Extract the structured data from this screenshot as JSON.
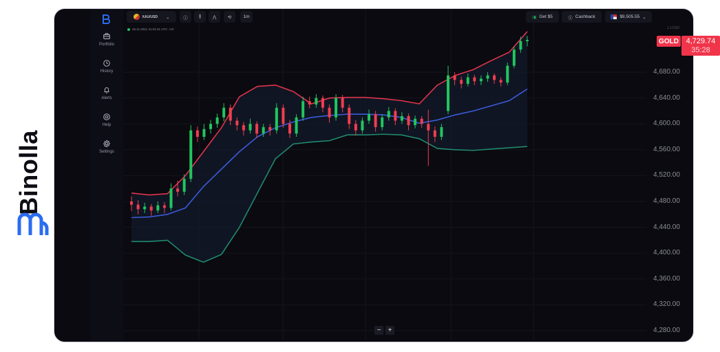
{
  "brand": {
    "name": "Binolla",
    "color": "#2b6cf0"
  },
  "sidebar": {
    "items": [
      {
        "label": "Portfolio",
        "icon": "briefcase-icon"
      },
      {
        "label": "History",
        "icon": "history-icon"
      },
      {
        "label": "Alerts",
        "icon": "bell-icon"
      },
      {
        "label": "Help",
        "icon": "lifebuoy-icon"
      },
      {
        "label": "Settings",
        "icon": "gear-icon"
      }
    ]
  },
  "toolbar": {
    "asset": "XAU/USD",
    "timeframe": "1m",
    "bonus": "Get $5",
    "cashback": "Cashback",
    "balance": "$9,505.55"
  },
  "timestamp": "25.11.2021  21:04:31  UTC +10",
  "price_label": {
    "symbol": "GOLD",
    "price": "4,729.74",
    "timer": "35:28"
  },
  "top_tick": "1.13150",
  "zoom": {
    "minus": "−",
    "plus": "+"
  },
  "colors": {
    "bg": "#0a0a10",
    "up": "#22c55e",
    "down": "#ef3e4f",
    "upper_band": "#e0344b",
    "middle_band": "#3a5bd9",
    "lower_band": "#1f8a6e",
    "label": "#f0354a"
  },
  "chart_data": {
    "type": "candlestick",
    "indicator": "Bollinger Bands",
    "ylim": [
      4260,
      4760
    ],
    "yticks": [
      "4,680.00",
      "4,640.00",
      "4,600.00",
      "4,560.00",
      "4,520.00",
      "4,480.00",
      "4,440.00",
      "4,400.00",
      "4,360.00",
      "4,320.00",
      "4,280.00"
    ],
    "ytick_values": [
      4680,
      4640,
      4600,
      4560,
      4520,
      4480,
      4440,
      4400,
      4360,
      4320,
      4280
    ],
    "candles": [
      [
        4480,
        4488,
        4465,
        4475
      ],
      [
        4475,
        4482,
        4460,
        4468
      ],
      [
        4468,
        4478,
        4462,
        4472
      ],
      [
        4472,
        4476,
        4458,
        4466
      ],
      [
        4466,
        4480,
        4462,
        4474
      ],
      [
        4474,
        4479,
        4462,
        4470
      ],
      [
        4470,
        4508,
        4466,
        4500
      ],
      [
        4500,
        4512,
        4488,
        4495
      ],
      [
        4495,
        4522,
        4490,
        4515
      ],
      [
        4515,
        4598,
        4510,
        4590
      ],
      [
        4590,
        4596,
        4572,
        4580
      ],
      [
        4580,
        4600,
        4575,
        4592
      ],
      [
        4592,
        4606,
        4585,
        4600
      ],
      [
        4600,
        4616,
        4594,
        4610
      ],
      [
        4610,
        4632,
        4604,
        4625
      ],
      [
        4625,
        4630,
        4598,
        4605
      ],
      [
        4605,
        4610,
        4590,
        4598
      ],
      [
        4598,
        4603,
        4582,
        4590
      ],
      [
        4590,
        4608,
        4585,
        4600
      ],
      [
        4600,
        4604,
        4578,
        4585
      ],
      [
        4585,
        4600,
        4580,
        4595
      ],
      [
        4595,
        4600,
        4582,
        4590
      ],
      [
        4590,
        4632,
        4585,
        4625
      ],
      [
        4625,
        4630,
        4594,
        4600
      ],
      [
        4600,
        4606,
        4578,
        4585
      ],
      [
        4585,
        4615,
        4580,
        4610
      ],
      [
        4610,
        4642,
        4605,
        4635
      ],
      [
        4635,
        4642,
        4624,
        4630
      ],
      [
        4630,
        4646,
        4625,
        4640
      ],
      [
        4640,
        4644,
        4618,
        4625
      ],
      [
        4625,
        4630,
        4602,
        4610
      ],
      [
        4610,
        4646,
        4605,
        4640
      ],
      [
        4640,
        4645,
        4618,
        4625
      ],
      [
        4625,
        4630,
        4592,
        4600
      ],
      [
        4600,
        4606,
        4582,
        4590
      ],
      [
        4590,
        4610,
        4585,
        4605
      ],
      [
        4605,
        4622,
        4600,
        4615
      ],
      [
        4615,
        4620,
        4588,
        4595
      ],
      [
        4595,
        4615,
        4590,
        4610
      ],
      [
        4610,
        4626,
        4605,
        4620
      ],
      [
        4620,
        4624,
        4598,
        4605
      ],
      [
        4605,
        4618,
        4600,
        4612
      ],
      [
        4612,
        4616,
        4590,
        4598
      ],
      [
        4598,
        4613,
        4593,
        4608
      ],
      [
        4608,
        4612,
        4594,
        4600
      ],
      [
        4600,
        4622,
        4535,
        4590
      ],
      [
        4590,
        4596,
        4572,
        4580
      ],
      [
        4580,
        4600,
        4575,
        4595
      ],
      [
        4620,
        4690,
        4615,
        4675
      ],
      [
        4675,
        4680,
        4660,
        4668
      ],
      [
        4668,
        4673,
        4655,
        4662
      ],
      [
        4662,
        4678,
        4658,
        4672
      ],
      [
        4672,
        4676,
        4660,
        4666
      ],
      [
        4666,
        4675,
        4660,
        4670
      ],
      [
        4670,
        4680,
        4665,
        4675
      ],
      [
        4675,
        4678,
        4662,
        4668
      ],
      [
        4668,
        4672,
        4658,
        4664
      ],
      [
        4664,
        4695,
        4660,
        4690
      ],
      [
        4690,
        4720,
        4686,
        4715
      ],
      [
        4715,
        4735,
        4710,
        4728
      ],
      [
        4728,
        4736,
        4720,
        4730
      ]
    ],
    "upper_band": [
      4493,
      4490,
      4492,
      4520,
      4557,
      4594,
      4642,
      4658,
      4660,
      4650,
      4631,
      4640,
      4641,
      4641,
      4639,
      4636,
      4631,
      4660,
      4675,
      4684,
      4698,
      4711,
      4743
    ],
    "middle_band": [
      4455,
      4456,
      4460,
      4470,
      4503,
      4530,
      4557,
      4580,
      4594,
      4603,
      4610,
      4613,
      4615,
      4615,
      4614,
      4610,
      4601,
      4606,
      4614,
      4620,
      4628,
      4636,
      4654
    ],
    "lower_band": [
      4418,
      4418,
      4420,
      4397,
      4386,
      4398,
      4440,
      4493,
      4546,
      4569,
      4572,
      4574,
      4583,
      4583,
      4584,
      4583,
      4577,
      4562,
      4560,
      4559,
      4561,
      4563,
      4565
    ]
  }
}
